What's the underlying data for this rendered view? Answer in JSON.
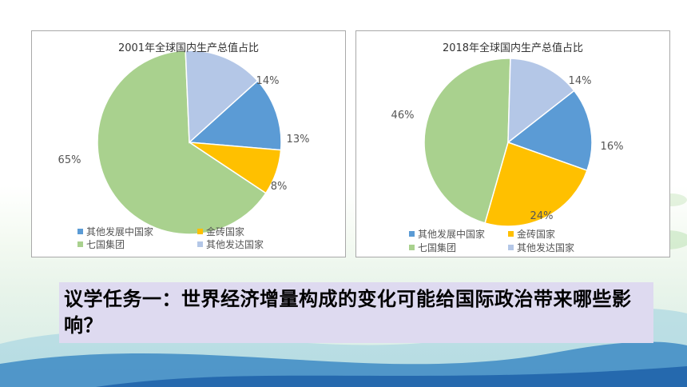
{
  "slide": {
    "question": "议学任务一：世界经济增量构成的变化可能给国际政治带来哪些影响？"
  },
  "legend_labels": [
    "其他发展中国家",
    "金砖国家",
    "七国集团",
    "其他发达国家"
  ],
  "colors": {
    "other_developing": "#5b9bd5",
    "brics": "#ffc000",
    "g7": "#a9d18e",
    "other_developed": "#b4c7e7"
  },
  "chart_data": [
    {
      "type": "pie",
      "title": "2001年全球国内生产总值占比",
      "series": [
        {
          "name": "其他发展中国家",
          "value": 13,
          "label": "13%"
        },
        {
          "name": "金砖国家",
          "value": 8,
          "label": "8%"
        },
        {
          "name": "七国集团",
          "value": 65,
          "label": "65%"
        },
        {
          "name": "其他发达国家",
          "value": 14,
          "label": "14%"
        }
      ],
      "legend_position": "bottom"
    },
    {
      "type": "pie",
      "title": "2018年全球国内生产总值占比",
      "series": [
        {
          "name": "其他发展中国家",
          "value": 16,
          "label": "16%"
        },
        {
          "name": "金砖国家",
          "value": 24,
          "label": "24%"
        },
        {
          "name": "七国集团",
          "value": 46,
          "label": "46%"
        },
        {
          "name": "其他发达国家",
          "value": 14,
          "label": "14%"
        }
      ],
      "legend_position": "bottom"
    }
  ]
}
